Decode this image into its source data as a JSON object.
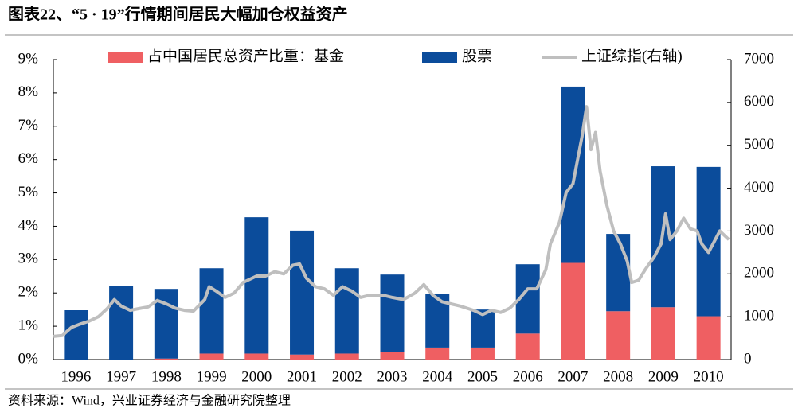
{
  "chart_data": {
    "type": "bar",
    "stacked": true,
    "title": "图表22、“5 · 19”行情期间居民大幅加仓权益资产",
    "source": "资料来源：Wind，兴业证券经济与金融研究院整理",
    "categories": [
      "1996",
      "1997",
      "1998",
      "1999",
      "2000",
      "2001",
      "2002",
      "2003",
      "2004",
      "2005",
      "2006",
      "2007",
      "2008",
      "2009",
      "2010"
    ],
    "series": [
      {
        "name": "占中国居民总资产比重：基金",
        "color": "#ef5f62",
        "values": [
          0,
          0,
          0.03,
          0.18,
          0.18,
          0.15,
          0.18,
          0.22,
          0.36,
          0.36,
          0.78,
          2.9,
          1.45,
          1.57,
          1.3
        ]
      },
      {
        "name": "股票",
        "color": "#0b4c9b",
        "values": [
          1.48,
          2.2,
          2.09,
          2.56,
          4.09,
          3.72,
          2.56,
          2.33,
          1.62,
          1.14,
          2.08,
          5.29,
          2.32,
          4.23,
          4.48
        ]
      },
      {
        "name": "上证综指(右轴)",
        "color": "#bfbfbf",
        "type": "line",
        "axis": "y2",
        "x": [
          1996.0,
          1996.2,
          1996.4,
          1996.6,
          1996.8,
          1997.0,
          1997.2,
          1997.35,
          1997.5,
          1997.7,
          1997.9,
          1998.1,
          1998.3,
          1998.5,
          1998.7,
          1998.9,
          1999.1,
          1999.35,
          1999.45,
          1999.6,
          1999.8,
          2000.0,
          2000.2,
          2000.5,
          2000.7,
          2000.9,
          2001.1,
          2001.3,
          2001.45,
          2001.6,
          2001.8,
          2002.0,
          2002.2,
          2002.4,
          2002.6,
          2002.8,
          2003.0,
          2003.3,
          2003.5,
          2003.75,
          2004.0,
          2004.2,
          2004.4,
          2004.6,
          2004.8,
          2005.0,
          2005.3,
          2005.5,
          2005.7,
          2005.9,
          2006.1,
          2006.3,
          2006.5,
          2006.7,
          2006.9,
          2007.0,
          2007.2,
          2007.35,
          2007.5,
          2007.7,
          2007.8,
          2007.9,
          2008.0,
          2008.1,
          2008.25,
          2008.4,
          2008.55,
          2008.7,
          2008.8,
          2008.95,
          2009.1,
          2009.3,
          2009.45,
          2009.55,
          2009.65,
          2009.8,
          2009.95,
          2010.1,
          2010.25,
          2010.35,
          2010.5,
          2010.6,
          2010.75,
          2010.85,
          2010.95
        ],
        "values": [
          540,
          560,
          750,
          830,
          900,
          1000,
          1200,
          1400,
          1250,
          1150,
          1190,
          1230,
          1380,
          1300,
          1200,
          1150,
          1130,
          1400,
          1700,
          1600,
          1450,
          1550,
          1800,
          1950,
          1950,
          2050,
          2000,
          2200,
          2230,
          1900,
          1700,
          1650,
          1500,
          1700,
          1600,
          1450,
          1500,
          1500,
          1450,
          1400,
          1550,
          1750,
          1500,
          1350,
          1300,
          1250,
          1150,
          1050,
          1150,
          1100,
          1200,
          1400,
          1650,
          1650,
          2100,
          2700,
          3200,
          3900,
          4100,
          5200,
          5900,
          4900,
          5300,
          4400,
          3600,
          3000,
          2700,
          2300,
          1800,
          1850,
          2100,
          2400,
          2700,
          3400,
          2800,
          3000,
          3300,
          3050,
          3000,
          2700,
          2500,
          2700,
          3000,
          2900,
          2800
        ]
      }
    ],
    "xlim": [
      1996,
      2011
    ],
    "ylim": [
      0,
      9
    ],
    "yticks": [
      {
        "value": 0,
        "label": "0%"
      },
      {
        "value": 1,
        "label": "1%"
      },
      {
        "value": 2,
        "label": "2%"
      },
      {
        "value": 3,
        "label": "3%"
      },
      {
        "value": 4,
        "label": "4%"
      },
      {
        "value": 5,
        "label": "5%"
      },
      {
        "value": 6,
        "label": "6%"
      },
      {
        "value": 7,
        "label": "7%"
      },
      {
        "value": 8,
        "label": "8%"
      },
      {
        "value": 9,
        "label": "9%"
      }
    ],
    "y2lim": [
      0,
      7000
    ],
    "y2ticks": [
      0,
      1000,
      2000,
      3000,
      4000,
      5000,
      6000,
      7000
    ],
    "legend": "top"
  }
}
